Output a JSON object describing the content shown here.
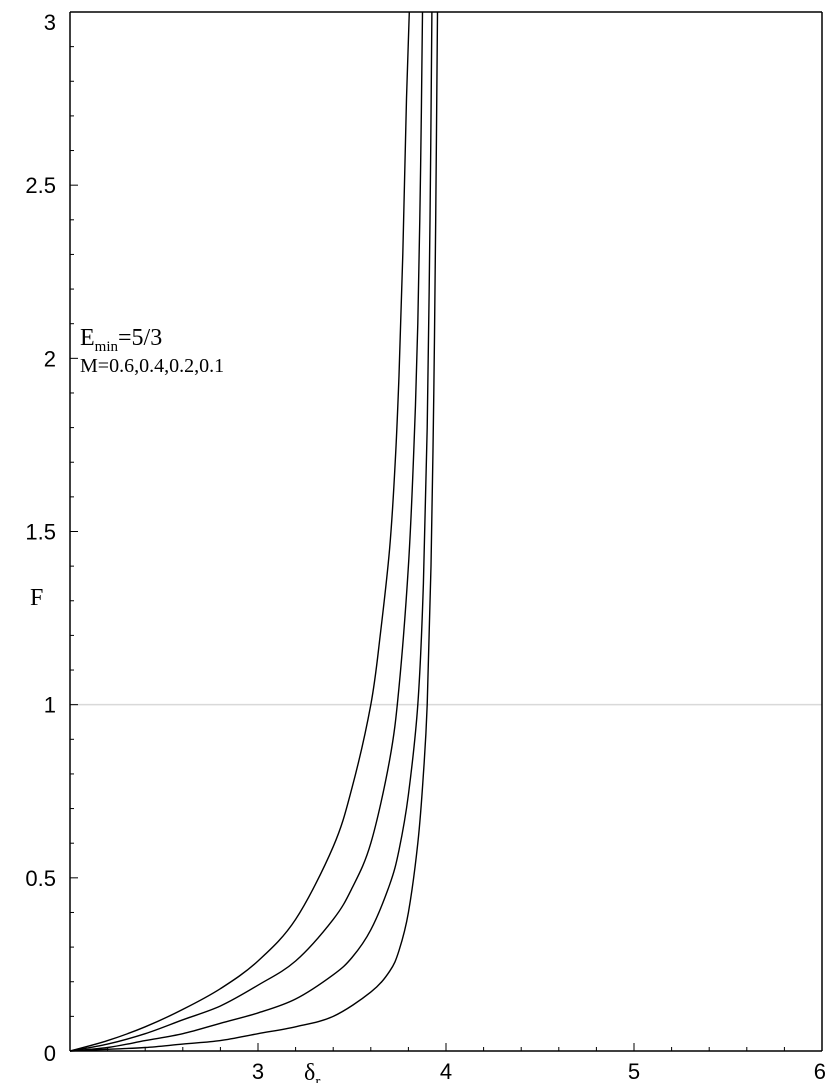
{
  "chart_data": {
    "type": "line",
    "xlabel": "δ",
    "xlabel_sub": "r",
    "ylabel": "F",
    "xlim": [
      2,
      6
    ],
    "ylim": [
      0,
      3
    ],
    "x_ticks": [
      3,
      4,
      5,
      6
    ],
    "x_tick_labels": [
      "3",
      "4",
      "5",
      "6"
    ],
    "y_ticks": [
      0,
      0.5,
      1,
      1.5,
      2,
      2.5,
      3
    ],
    "y_tick_labels": [
      "0",
      "0.5",
      "1",
      "1.5",
      "2",
      "2.5",
      "3"
    ],
    "reference_lines": [
      {
        "axis": "y",
        "value": 1,
        "color": "#d9d9d9"
      }
    ],
    "annotation": {
      "line1_main": "E",
      "line1_sub": "min",
      "line1_rest": "=5/3",
      "line2": "M=0.6,0.4,0.2,0.1"
    },
    "series": [
      {
        "x": [
          2.0,
          2.2,
          2.4,
          2.6,
          2.8,
          3.0,
          3.2,
          3.4,
          3.5,
          3.6,
          3.65,
          3.7,
          3.73,
          3.75,
          3.77,
          3.79,
          3.805
        ],
        "y": [
          0.0,
          0.03,
          0.07,
          0.12,
          0.18,
          0.26,
          0.38,
          0.59,
          0.76,
          1.0,
          1.2,
          1.45,
          1.7,
          1.95,
          2.3,
          2.75,
          3.0
        ]
      },
      {
        "x": [
          2.0,
          2.2,
          2.4,
          2.6,
          2.8,
          3.0,
          3.2,
          3.4,
          3.5,
          3.6,
          3.7,
          3.75,
          3.8,
          3.83,
          3.85,
          3.865,
          3.875
        ],
        "y": [
          0.0,
          0.02,
          0.05,
          0.09,
          0.13,
          0.19,
          0.26,
          0.38,
          0.47,
          0.6,
          0.84,
          1.05,
          1.4,
          1.75,
          2.1,
          2.55,
          3.0
        ]
      },
      {
        "x": [
          2.0,
          2.2,
          2.4,
          2.6,
          2.8,
          3.0,
          3.2,
          3.4,
          3.5,
          3.6,
          3.7,
          3.75,
          3.8,
          3.85,
          3.88,
          3.9,
          3.915,
          3.925
        ],
        "y": [
          0.0,
          0.01,
          0.03,
          0.05,
          0.08,
          0.11,
          0.15,
          0.22,
          0.27,
          0.35,
          0.48,
          0.58,
          0.74,
          1.0,
          1.35,
          1.8,
          2.4,
          3.0
        ]
      },
      {
        "x": [
          2.0,
          2.2,
          2.4,
          2.6,
          2.8,
          3.0,
          3.2,
          3.4,
          3.6,
          3.7,
          3.75,
          3.8,
          3.85,
          3.88,
          3.9,
          3.92,
          3.935,
          3.945,
          3.955
        ],
        "y": [
          0.0,
          0.005,
          0.01,
          0.02,
          0.03,
          0.05,
          0.07,
          0.1,
          0.17,
          0.23,
          0.29,
          0.4,
          0.6,
          0.8,
          1.0,
          1.4,
          1.9,
          2.4,
          3.0
        ]
      }
    ]
  }
}
